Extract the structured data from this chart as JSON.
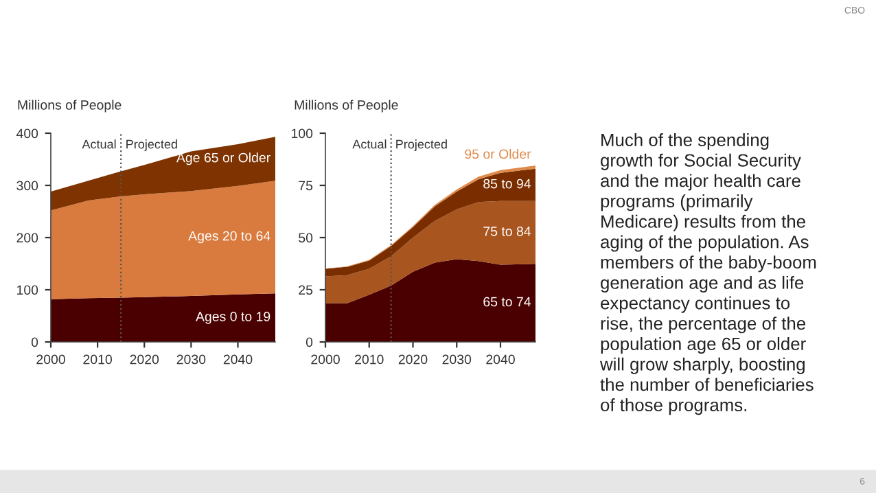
{
  "chart_data": [
    {
      "type": "area",
      "stacked": true,
      "ylabel": "Millions of People",
      "x": [
        2000,
        2008,
        2015,
        2020,
        2030,
        2040,
        2048
      ],
      "xlim": [
        2000,
        2048
      ],
      "xticks": [
        2000,
        2010,
        2020,
        2030,
        2040
      ],
      "ylim": [
        0,
        400
      ],
      "yticks": [
        0,
        100,
        200,
        300,
        400
      ],
      "legend": false,
      "grid": false,
      "series": [
        {
          "name": "Ages 0 to 19",
          "color": "#4a0000",
          "values": [
            82,
            84,
            85,
            86,
            88,
            91,
            93
          ]
        },
        {
          "name": "Ages 20 to 64",
          "color": "#d97b3e",
          "values": [
            170,
            187,
            194,
            197,
            201,
            208,
            216
          ]
        },
        {
          "name": "Age 65 or Older",
          "color": "#7f3300",
          "values": [
            36,
            38,
            48,
            56,
            76,
            80,
            84
          ]
        }
      ],
      "ref_lines": [
        {
          "axis": "x",
          "value": 2015,
          "line_style": "dotted",
          "color": "#555555"
        }
      ],
      "annotations": [
        "Actual",
        "Projected"
      ]
    },
    {
      "type": "area",
      "stacked": true,
      "ylabel": "Millions of People",
      "x": [
        2000,
        2005,
        2010,
        2015,
        2020,
        2025,
        2030,
        2035,
        2040,
        2048
      ],
      "xlim": [
        2000,
        2048
      ],
      "xticks": [
        2000,
        2010,
        2020,
        2030,
        2040
      ],
      "ylim": [
        0,
        100
      ],
      "yticks": [
        0,
        25,
        50,
        75,
        100
      ],
      "legend": false,
      "grid": false,
      "series": [
        {
          "name": "65 to 74",
          "color": "#4a0000",
          "values": [
            18.6,
            18.6,
            22.6,
            27,
            33.6,
            38,
            39.6,
            38.7,
            37,
            37.4
          ]
        },
        {
          "name": "75 to 84",
          "color": "#a85520",
          "values": [
            12.8,
            13.4,
            12.4,
            14,
            16.4,
            20,
            23.9,
            28.3,
            30.5,
            30.1
          ]
        },
        {
          "name": "85 to 94",
          "color": "#7a2e00",
          "values": [
            3.6,
            4,
            4,
            5,
            5,
            7,
            8.5,
            11,
            13.5,
            15.5
          ]
        },
        {
          "name": "95 or Older",
          "color": "#e08a4a",
          "values": [
            0.2,
            0.2,
            0.3,
            0.4,
            0.5,
            0.7,
            1,
            1.2,
            1.3,
            1.5
          ]
        }
      ],
      "ref_lines": [
        {
          "axis": "x",
          "value": 2015,
          "line_style": "dotted",
          "color": "#555555"
        }
      ],
      "annotations": [
        "Actual",
        "Projected"
      ]
    },
    {
      "type": "other",
      "annotations": [
        "Much of the spending growth for Social Security and the major health care programs (primarily Medicare) results from the aging of the population. As members of the baby-boom generation age and as life expectancy continues to rise, the percentage of the population age 65 or older will grow sharply, boosting the number of beneficiaries of those programs.",
        "CBO",
        "6"
      ]
    }
  ]
}
